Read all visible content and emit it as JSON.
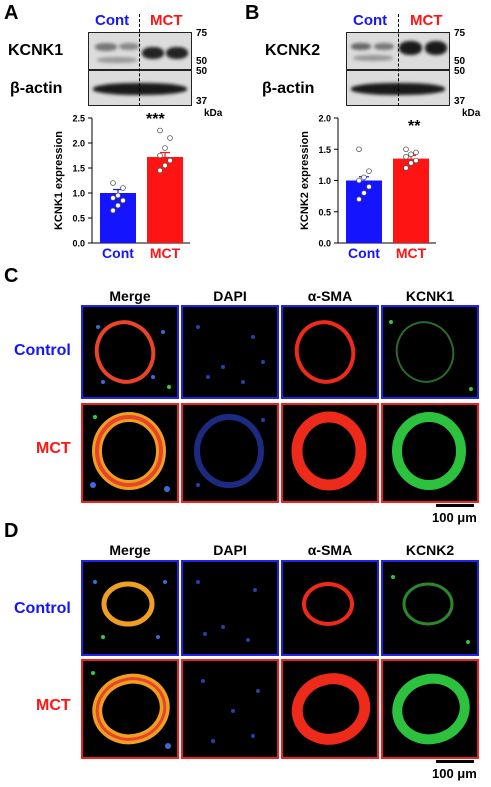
{
  "panel_a": {
    "label": "A",
    "groups": [
      "Cont",
      "MCT"
    ],
    "protein": "KCNK1",
    "loading": "β-actin",
    "mw_top": [
      "75",
      "50"
    ],
    "mw_bottom": [
      "50",
      "37"
    ],
    "kda": "kDa",
    "sig": "***"
  },
  "panel_b": {
    "label": "B",
    "groups": [
      "Cont",
      "MCT"
    ],
    "protein": "KCNK2",
    "loading": "β-actin",
    "mw_top": [
      "75",
      "50"
    ],
    "mw_bottom": [
      "50",
      "37"
    ],
    "kda": "kDa",
    "sig": "**"
  },
  "panel_c": {
    "label": "C",
    "columns": [
      "Merge",
      "DAPI",
      "α-SMA",
      "KCNK1"
    ],
    "rows": [
      "Control",
      "MCT"
    ],
    "scale": "100 μm"
  },
  "panel_d": {
    "label": "D",
    "columns": [
      "Merge",
      "DAPI",
      "α-SMA",
      "KCNK2"
    ],
    "rows": [
      "Control",
      "MCT"
    ],
    "scale": "100 μm"
  },
  "colors": {
    "cont": "#1414ff",
    "mct": "#ff1414",
    "text": "#000000"
  },
  "chart_data": [
    {
      "type": "bar",
      "categories": [
        "Cont",
        "MCT"
      ],
      "values": [
        1.0,
        1.72
      ],
      "errors": [
        0.07,
        0.09
      ],
      "points": [
        [
          0.65,
          0.75,
          0.85,
          0.9,
          0.95,
          1.1,
          1.2
        ],
        [
          1.45,
          1.55,
          1.65,
          1.75,
          1.9,
          2.1,
          2.25
        ]
      ],
      "ylabel": "KCNK1 expression",
      "ylim": [
        0,
        2.5
      ],
      "yticks": [
        "0.0",
        "0.5",
        "1.0",
        "1.5",
        "2.0",
        "2.5"
      ],
      "annotation": "***"
    },
    {
      "type": "bar",
      "categories": [
        "Cont",
        "MCT"
      ],
      "values": [
        1.0,
        1.35
      ],
      "errors": [
        0.06,
        0.05
      ],
      "points": [
        [
          0.7,
          0.8,
          0.9,
          1.0,
          1.05,
          1.15,
          1.5
        ],
        [
          1.2,
          1.28,
          1.32,
          1.38,
          1.42,
          1.45,
          1.5
        ]
      ],
      "ylabel": "KCNK2 expression",
      "ylim": [
        0,
        2.0
      ],
      "yticks": [
        "0.0",
        "0.5",
        "1.0",
        "1.5",
        "2.0"
      ],
      "annotation": "**"
    }
  ]
}
